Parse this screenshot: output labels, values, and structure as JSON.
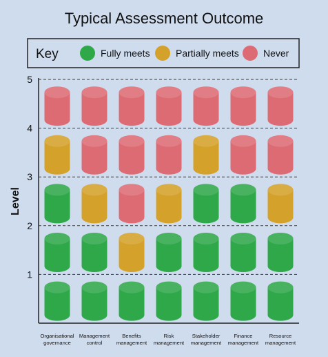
{
  "title": "Typical Assessment Outcome",
  "key": {
    "title": "Key",
    "items": [
      {
        "label": "Fully meets",
        "status": "fully",
        "color": "#2fa84a"
      },
      {
        "label": "Partially meets",
        "status": "partial",
        "color": "#d4a22a"
      },
      {
        "label": "Never",
        "status": "never",
        "color": "#dd6b74"
      }
    ]
  },
  "chart_data": {
    "type": "table",
    "ylabel": "Level",
    "ylim": [
      0,
      5
    ],
    "y_ticks": [
      1,
      2,
      3,
      4,
      5
    ],
    "categories": [
      [
        "Organisational",
        "governance"
      ],
      [
        "Management",
        "control"
      ],
      [
        "Benefits",
        "management"
      ],
      [
        "Risk",
        "management"
      ],
      [
        "Stakeholder",
        "management"
      ],
      [
        "Finance",
        "management"
      ],
      [
        "Resource",
        "management"
      ]
    ],
    "levels": [
      1,
      2,
      3,
      4,
      5
    ],
    "status_grid": [
      [
        "fully",
        "fully",
        "fully",
        "fully",
        "fully",
        "fully",
        "fully"
      ],
      [
        "fully",
        "fully",
        "partial",
        "fully",
        "fully",
        "fully",
        "fully"
      ],
      [
        "fully",
        "partial",
        "never",
        "partial",
        "fully",
        "fully",
        "partial"
      ],
      [
        "partial",
        "never",
        "never",
        "never",
        "partial",
        "never",
        "never"
      ],
      [
        "never",
        "never",
        "never",
        "never",
        "never",
        "never",
        "never"
      ]
    ],
    "grid": true,
    "legend_position": "top"
  }
}
